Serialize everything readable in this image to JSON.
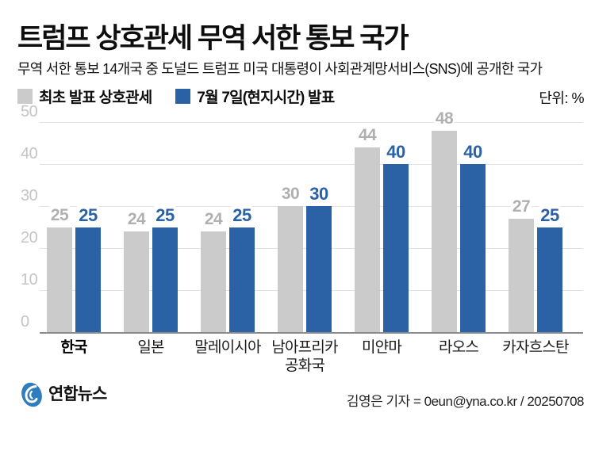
{
  "header": {
    "title": "트럼프 상호관세 무역 서한 통보 국가",
    "subtitle": "무역 서한 통보 14개국 중 도널드 트럼프 미국 대통령이 사회관계망서비스(SNS)에 공개한 국가",
    "unit_label": "단위: %"
  },
  "chart_data": {
    "type": "bar",
    "title": "트럼프 상호관세 무역 서한 통보 국가",
    "unit": "%",
    "categories": [
      "한국",
      "일본",
      "말레이시아",
      "남아프리카\n공화국",
      "미얀마",
      "라오스",
      "카자흐스탄"
    ],
    "emphasized_category": "한국",
    "series": [
      {
        "name": "최초 발표 상호관세",
        "color": "#cbcbcb",
        "label_color": "#b0b0b0",
        "values": [
          25,
          24,
          24,
          30,
          44,
          48,
          27
        ]
      },
      {
        "name": "7월 7일(현지시간) 발표",
        "color": "#2a62a5",
        "label_color": "#2a62a5",
        "values": [
          25,
          25,
          25,
          30,
          40,
          40,
          25
        ]
      }
    ],
    "ylim": [
      0,
      50
    ],
    "yticks": [
      0,
      10,
      20,
      30,
      40,
      50
    ],
    "grid": true,
    "legend_position": "top-left"
  },
  "footer": {
    "logo_text": "연합뉴스",
    "byline": "김영은 기자 = 0eun@yna.co.kr / 20250708"
  },
  "colors": {
    "bar_initial": "#cbcbcb",
    "bar_july7": "#2a62a5",
    "grid_line": "#e2e2e2",
    "axis_line": "#8a8a8a",
    "tick_label": "#c4c4c4",
    "logo_navy": "#1d3e99",
    "logo_emblem_blue": "#2f7cbe"
  }
}
